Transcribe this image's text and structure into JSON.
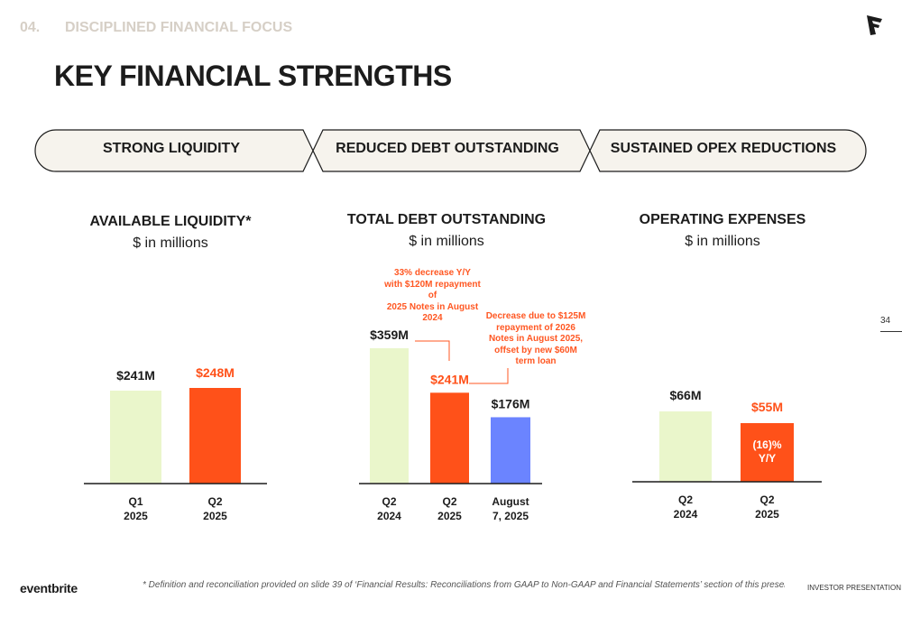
{
  "header": {
    "section_number": "04.",
    "section_title": "DISCIPLINED FINANCIAL FOCUS",
    "logo": "eventbrite-e-mark-icon"
  },
  "title": "KEY FINANCIAL STRENGTHS",
  "pillars": [
    {
      "label": "STRONG LIQUIDITY"
    },
    {
      "label": "REDUCED DEBT OUTSTANDING"
    },
    {
      "label": "SUSTAINED OPEX REDUCTIONS"
    }
  ],
  "colors": {
    "light_green": "#eaf6cb",
    "orange": "#ff5119",
    "blue": "#6b84ff",
    "pill_fill": "#f6f3ed",
    "axis": "#1c1c1c",
    "annotation": "#ff5722"
  },
  "chart_data": [
    {
      "type": "bar",
      "title": "AVAILABLE LIQUIDITY*",
      "subtitle": "$ in millions",
      "categories": [
        "Q1\n2025",
        "Q2\n2025"
      ],
      "values": [
        241,
        248
      ],
      "data_labels": [
        "$241M",
        "$248M"
      ],
      "bar_colors": [
        "#eaf6cb",
        "#ff5119"
      ],
      "label_colors": [
        "#1c1c1c",
        "#ff5119"
      ],
      "annotations": []
    },
    {
      "type": "bar",
      "title": "TOTAL DEBT OUTSTANDING",
      "subtitle": "$ in millions",
      "categories": [
        "Q2\n2024",
        "Q2\n2025",
        "August\n7, 2025"
      ],
      "values": [
        359,
        241,
        176
      ],
      "data_labels": [
        "$359M",
        "$241M",
        "$176M"
      ],
      "bar_colors": [
        "#eaf6cb",
        "#ff5119",
        "#6b84ff"
      ],
      "label_colors": [
        "#1c1c1c",
        "#ff5119",
        "#1c1c1c"
      ],
      "annotations": [
        "33% decrease Y/Y\nwith $120M repayment\nof\n2025 Notes in August\n2024",
        "Decrease due to $125M\nrepayment of 2026\nNotes in August 2025,\noffset by new $60M\nterm loan"
      ]
    },
    {
      "type": "bar",
      "title": "OPERATING EXPENSES",
      "subtitle": "$ in millions",
      "categories": [
        "Q2\n2024",
        "Q2\n2025"
      ],
      "values": [
        66,
        55
      ],
      "data_labels": [
        "$66M",
        "$55M"
      ],
      "bar_colors": [
        "#eaf6cb",
        "#ff5119"
      ],
      "label_colors": [
        "#1c1c1c",
        "#ff5119"
      ],
      "inner_label": "(16)%\nY/Y",
      "annotations": []
    }
  ],
  "page_number": "34",
  "footer": {
    "brand": "eventbrite",
    "footnote": "* Definition and reconciliation provided on slide 39 of ‘Financial Results: Reconciliations from GAAP to Non-GAAP and Financial Statements’ section of this presentation.",
    "right": "INVESTOR PRESENTATION"
  }
}
